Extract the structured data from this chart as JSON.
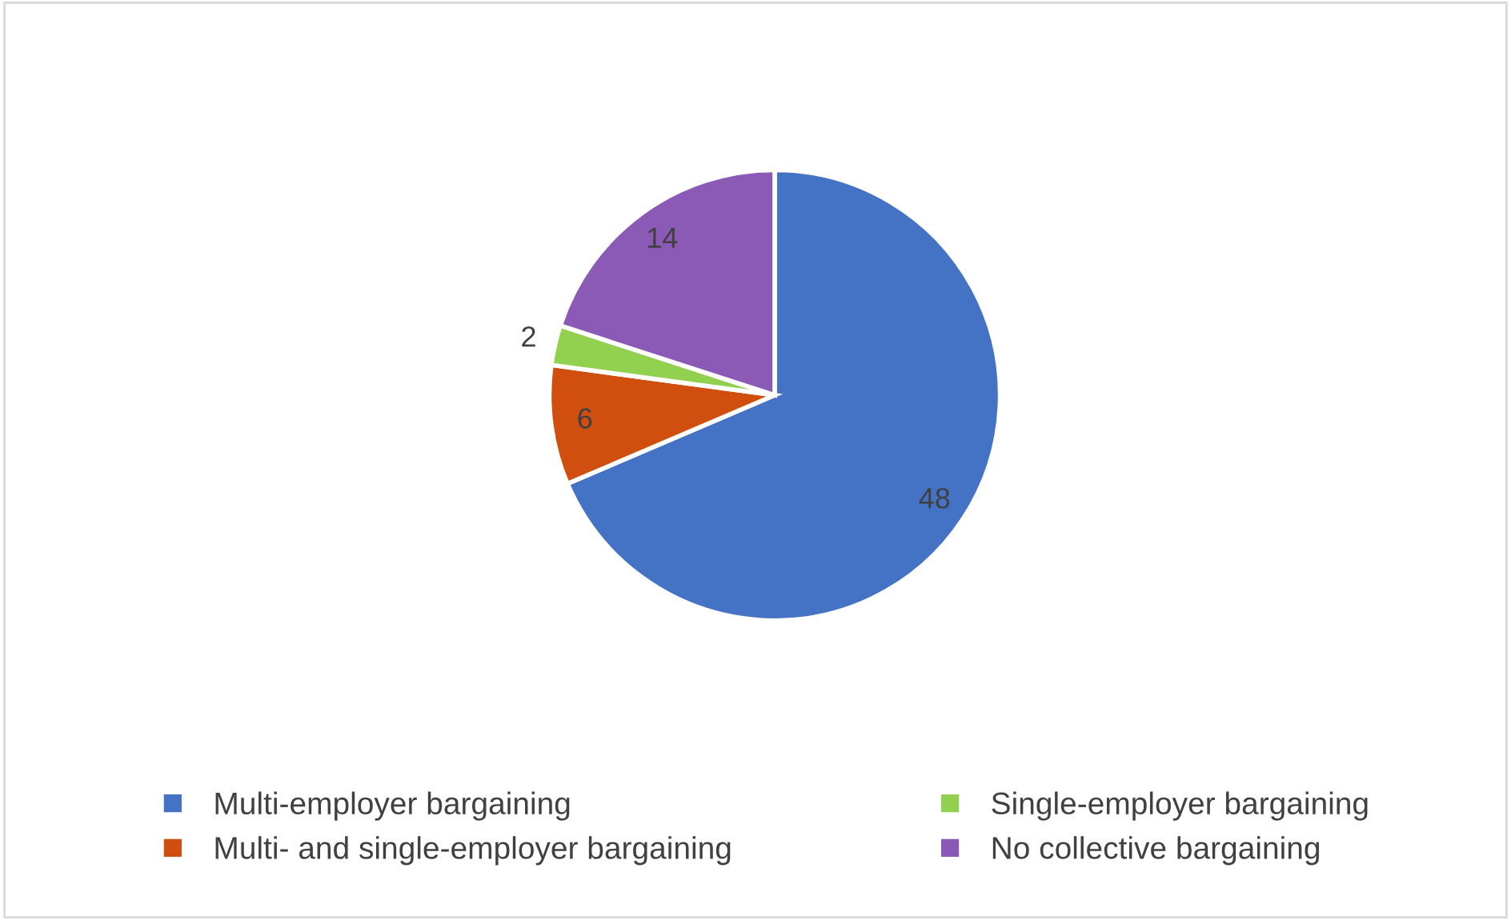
{
  "chart_data": {
    "type": "pie",
    "categories": [
      "Multi-employer bargaining",
      "Multi- and single-employer bargaining",
      "Single-employer bargaining",
      "No collective bargaining"
    ],
    "values": [
      48,
      6,
      2,
      14
    ],
    "colors": [
      "#4472c4",
      "#d04f0e",
      "#92d050",
      "#8b59b6"
    ],
    "data_labels": true,
    "legend": "bottom"
  }
}
